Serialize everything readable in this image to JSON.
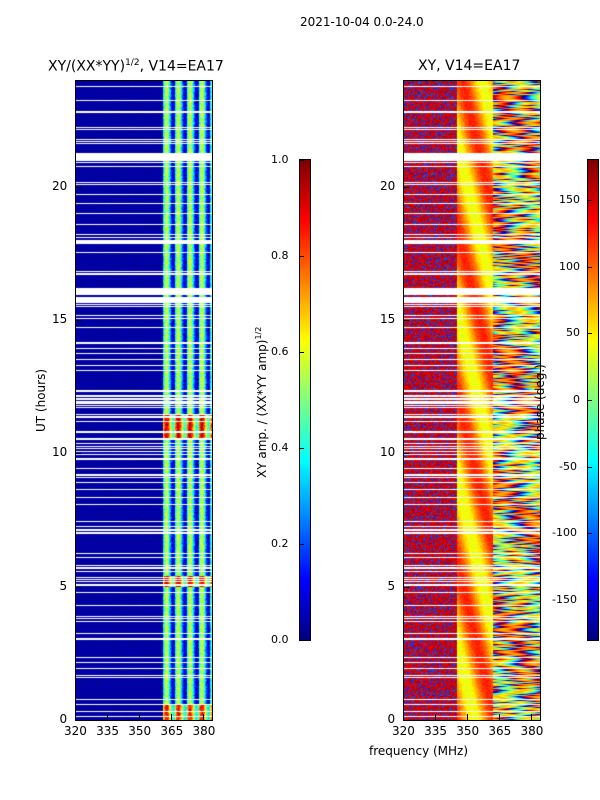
{
  "suptitle": "2021-10-04 0.0-24.0",
  "chart_data": [
    {
      "type": "heatmap",
      "title": "XY/(XX*YY)",
      "title_sup": "1/2",
      "title_suffix": ", V14=EA17",
      "xlabel": "frequency (MHz)",
      "ylabel": "UT (hours)",
      "xlim": [
        320,
        384
      ],
      "ylim": [
        0,
        24
      ],
      "xticks": [
        "320",
        "335",
        "350",
        "365",
        "380"
      ],
      "yticks": [
        "0",
        "5",
        "10",
        "15",
        "20"
      ],
      "colorbar": {
        "label": "XY amp. / (XX*YY amp)",
        "label_sup": "1/2",
        "range": [
          0,
          1
        ],
        "ticks": [
          "0.0",
          "0.2",
          "0.4",
          "0.6",
          "0.8",
          "1.0"
        ],
        "cmap": "jet"
      },
      "band_means": [
        {
          "freq_range": [
            320,
            361
          ],
          "value": 0.02
        },
        {
          "freq_range": [
            361,
            384
          ],
          "value": 0.35
        }
      ],
      "peak_hours": [
        5.2,
        10.9,
        11.3
      ]
    },
    {
      "type": "heatmap",
      "title": "XY, V14=EA17",
      "xlim": [
        320,
        384
      ],
      "ylim": [
        0,
        24
      ],
      "xticks": [
        "320",
        "335",
        "350",
        "365",
        "380"
      ],
      "yticks": [
        "0",
        "5",
        "10",
        "15",
        "20"
      ],
      "colorbar": {
        "label": "phase (deg.)",
        "range": [
          -180,
          180
        ],
        "ticks": [
          "-150",
          "-100",
          "-50",
          "0",
          "50",
          "100",
          "150"
        ],
        "cmap": "jet"
      },
      "band_means": [
        {
          "freq_range": [
            320,
            345
          ],
          "value": 140
        },
        {
          "freq_range": [
            345,
            362
          ],
          "value": 60
        },
        {
          "freq_range": [
            362,
            384
          ],
          "value": -110
        }
      ]
    }
  ]
}
